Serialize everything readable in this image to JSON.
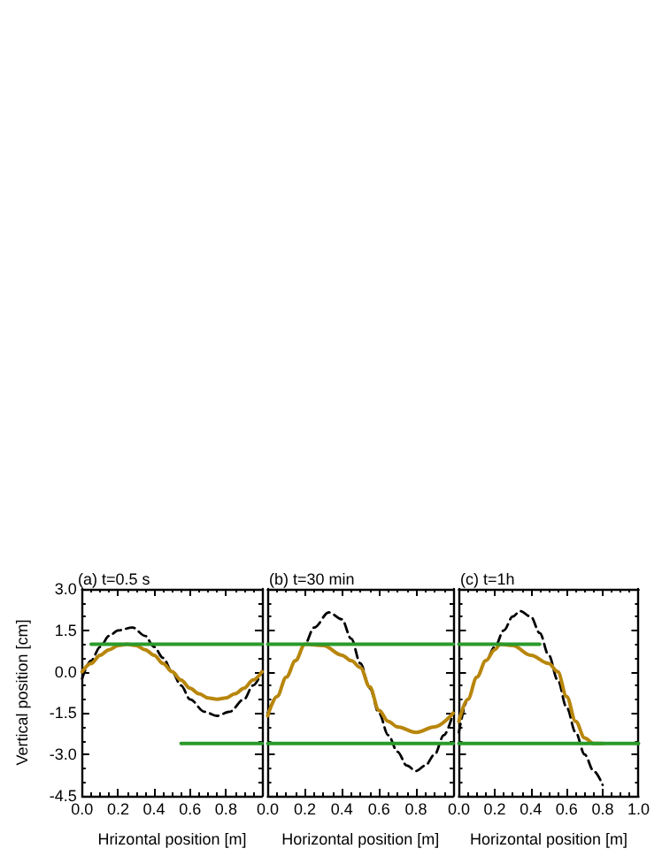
{
  "chart_data": [
    {
      "type": "line",
      "title": "(a) t=0.5 s",
      "xlabel": "Hrizontal position [m]",
      "ylabel": "Vertical position [cm]",
      "xlim": [
        0,
        1
      ],
      "ylim": [
        -4.5,
        3
      ],
      "xticks": [
        {
          "value": 0,
          "label": "0.0"
        },
        {
          "value": 0.2,
          "label": "0.2"
        },
        {
          "value": 0.4,
          "label": "0.4"
        },
        {
          "value": 0.6,
          "label": "0.6"
        },
        {
          "value": 0.8,
          "label": "0.8"
        },
        {
          "value": 1,
          "label": null
        }
      ],
      "yticks": [
        {
          "value": -4.5,
          "label": "-4.5"
        },
        {
          "value": -3,
          "label": "-3.0"
        },
        {
          "value": -1.5,
          "label": "-1.5"
        },
        {
          "value": 0,
          "label": "0.0"
        },
        {
          "value": 1.5,
          "label": "1.5"
        },
        {
          "value": 3,
          "label": "3.0"
        }
      ],
      "grid": false,
      "marker": "none",
      "series": [
        {
          "color": "#000000",
          "line_style": "dashed",
          "x": [
            0,
            0.05,
            0.1,
            0.15,
            0.2,
            0.28,
            0.35,
            0.4,
            0.45,
            0.5,
            0.55,
            0.6,
            0.68,
            0.75,
            0.82,
            0.9,
            0.95,
            1
          ],
          "values": [
            -0.25,
            0.4,
            0.9,
            1.3,
            1.5,
            1.6,
            1.3,
            0.9,
            0.5,
            0.0,
            -0.5,
            -1.0,
            -1.45,
            -1.6,
            -1.45,
            -1.0,
            -0.5,
            0.0
          ]
        },
        {
          "color": "#b8860b",
          "line_style": "solid",
          "x": [
            0,
            0.05,
            0.1,
            0.15,
            0.2,
            0.25,
            0.3,
            0.35,
            0.4,
            0.45,
            0.5,
            0.55,
            0.6,
            0.65,
            0.7,
            0.75,
            0.8,
            0.85,
            0.9,
            0.95,
            1
          ],
          "values": [
            0,
            0.3,
            0.6,
            0.8,
            0.95,
            1.0,
            0.95,
            0.8,
            0.6,
            0.3,
            0,
            -0.3,
            -0.6,
            -0.8,
            -0.95,
            -1.0,
            -0.95,
            -0.8,
            -0.6,
            -0.3,
            0
          ]
        },
        {
          "color": "#2a9a2a",
          "line_style": "solid",
          "x": [
            0.05,
            1
          ],
          "values": [
            1.0,
            1.0
          ]
        },
        {
          "color": "#2a9a2a",
          "line_style": "solid",
          "x": [
            0.55,
            1
          ],
          "values": [
            -2.6,
            -2.6
          ]
        }
      ]
    },
    {
      "type": "line",
      "title": "(b) t=30 min",
      "xlabel": "Horizontal position [m]",
      "xlim": [
        0,
        1
      ],
      "ylim": [
        -4.5,
        3
      ],
      "tick_labels": "x",
      "xticks": [
        {
          "value": 0,
          "label": "0.0"
        },
        {
          "value": 0.2,
          "label": "0.2"
        },
        {
          "value": 0.4,
          "label": "0.4"
        },
        {
          "value": 0.6,
          "label": "0.6"
        },
        {
          "value": 0.8,
          "label": "0.8"
        },
        {
          "value": 1,
          "label": null
        }
      ],
      "yticks": [
        -4.5,
        -3,
        -1.5,
        0,
        1.5,
        3
      ],
      "grid": false,
      "marker": "none",
      "series": [
        {
          "color": "#000000",
          "line_style": "dashed",
          "x": [
            0,
            0.05,
            0.1,
            0.15,
            0.2,
            0.25,
            0.33,
            0.4,
            0.45,
            0.5,
            0.55,
            0.6,
            0.65,
            0.7,
            0.75,
            0.8,
            0.85,
            0.9,
            0.95,
            1
          ],
          "values": [
            -1.5,
            -0.9,
            -0.2,
            0.4,
            1.0,
            1.6,
            2.15,
            1.9,
            1.2,
            0.3,
            -0.6,
            -1.5,
            -2.3,
            -2.9,
            -3.4,
            -3.6,
            -3.4,
            -3.0,
            -2.3,
            -1.5
          ]
        },
        {
          "color": "#b8860b",
          "line_style": "solid",
          "x": [
            0,
            0.05,
            0.1,
            0.15,
            0.2,
            0.3,
            0.4,
            0.45,
            0.5,
            0.55,
            0.6,
            0.65,
            0.7,
            0.8,
            0.9,
            1
          ],
          "values": [
            -1.6,
            -0.9,
            -0.2,
            0.4,
            1.0,
            0.95,
            0.6,
            0.4,
            0.15,
            -0.55,
            -1.4,
            -1.8,
            -2.0,
            -2.2,
            -2.0,
            -1.5
          ]
        },
        {
          "color": "#2a9a2a",
          "line_style": "solid",
          "x": [
            0,
            1
          ],
          "values": [
            1.0,
            1.0
          ]
        },
        {
          "color": "#2a9a2a",
          "line_style": "solid",
          "x": [
            0,
            1
          ],
          "values": [
            -2.6,
            -2.6
          ]
        }
      ]
    },
    {
      "type": "line",
      "title": "(c) t=1h",
      "xlabel": "Horizontal position [m]",
      "xlim": [
        0,
        1
      ],
      "ylim": [
        -4.5,
        3
      ],
      "tick_labels": "x",
      "xticks": [
        {
          "value": 0,
          "label": "0.0"
        },
        {
          "value": 0.2,
          "label": "0.2"
        },
        {
          "value": 0.4,
          "label": "0.4"
        },
        {
          "value": 0.6,
          "label": "0.6"
        },
        {
          "value": 0.8,
          "label": "0.8"
        },
        {
          "value": 1,
          "label": "1.0"
        }
      ],
      "yticks": [
        -4.5,
        -3,
        -1.5,
        0,
        1.5,
        3
      ],
      "grid": false,
      "marker": "none",
      "series": [
        {
          "color": "#000000",
          "line_style": "dashed",
          "x": [
            0,
            0.05,
            0.1,
            0.15,
            0.2,
            0.25,
            0.3,
            0.34,
            0.4,
            0.45,
            0.5,
            0.55,
            0.6,
            0.65,
            0.7,
            0.75,
            0.8
          ],
          "values": [
            -2.2,
            -1.0,
            -0.2,
            0.4,
            0.9,
            1.5,
            2.0,
            2.2,
            2.0,
            1.4,
            0.6,
            -0.3,
            -1.3,
            -2.2,
            -3.0,
            -3.6,
            -4.1
          ]
        },
        {
          "color": "#b8860b",
          "line_style": "solid",
          "x": [
            0,
            0.05,
            0.1,
            0.15,
            0.2,
            0.23,
            0.3,
            0.4,
            0.5,
            0.55,
            0.6,
            0.65,
            0.7,
            0.75,
            0.8
          ],
          "values": [
            -1.8,
            -1.0,
            -0.2,
            0.4,
            0.8,
            1.0,
            0.95,
            0.6,
            0.3,
            0.0,
            -0.9,
            -1.8,
            -2.4,
            -2.6,
            -2.6
          ]
        },
        {
          "color": "#2a9a2a",
          "line_style": "solid",
          "x": [
            0,
            0.45
          ],
          "values": [
            1.0,
            1.0
          ]
        },
        {
          "color": "#2a9a2a",
          "line_style": "solid",
          "x": [
            0,
            1
          ],
          "values": [
            -2.6,
            -2.6
          ]
        }
      ]
    }
  ]
}
